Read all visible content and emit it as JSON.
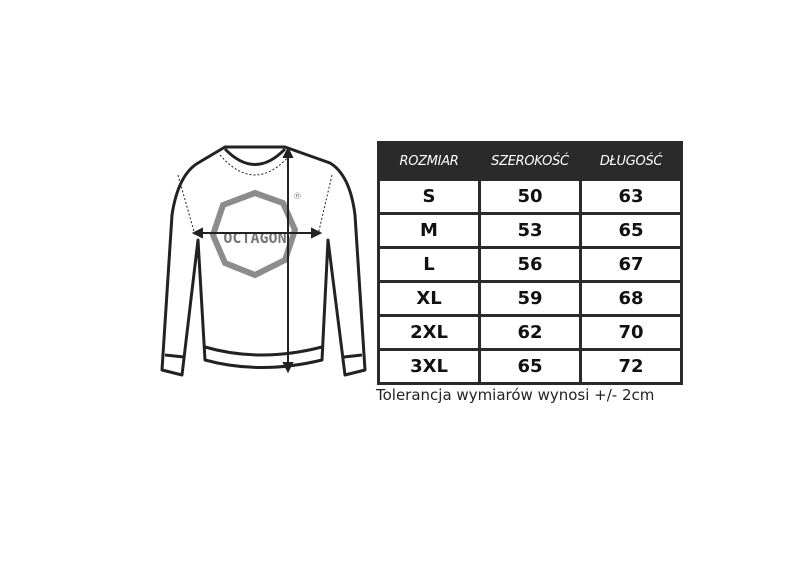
{
  "logo_text": "OCTAGON",
  "table": {
    "headers": [
      "ROZMIAR",
      "SZEROKOŚĆ",
      "DŁUGOŚĆ"
    ],
    "rows": [
      [
        "S",
        "50",
        "63"
      ],
      [
        "M",
        "53",
        "65"
      ],
      [
        "L",
        "56",
        "67"
      ],
      [
        "XL",
        "59",
        "68"
      ],
      [
        "2XL",
        "62",
        "70"
      ],
      [
        "3XL",
        "65",
        "72"
      ]
    ]
  },
  "note": "Tolerancja wymiarów wynosi +/- 2cm",
  "colors": {
    "header_bg": "#2a2a2a",
    "logo_gray": "#8c8c8c"
  }
}
